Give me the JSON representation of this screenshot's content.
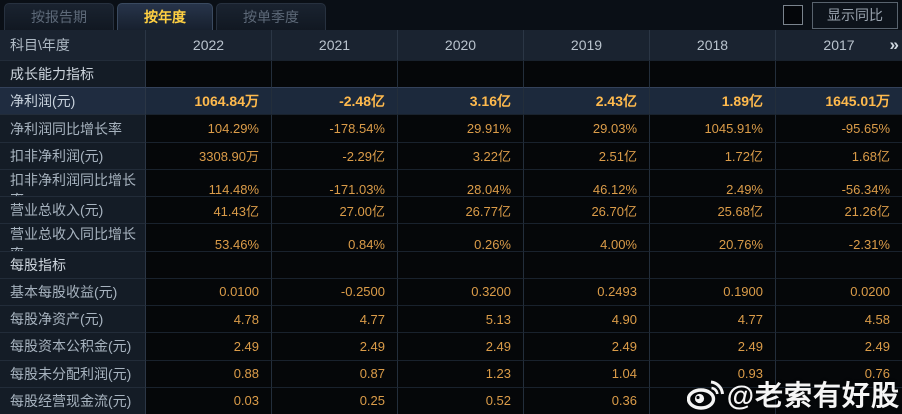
{
  "tabbar": {
    "tabs": [
      {
        "id": "by-report-period",
        "label": "按报告期",
        "active": false
      },
      {
        "id": "by-year",
        "label": "按年度",
        "active": true
      },
      {
        "id": "by-quarter",
        "label": "按单季度",
        "active": false
      }
    ],
    "show_yoy": {
      "label": "显示同比",
      "checked": false
    }
  },
  "table": {
    "corner_label": "科目\\年度",
    "years": [
      "2022",
      "2021",
      "2020",
      "2019",
      "2018",
      "2017"
    ],
    "more_columns_icon": "»",
    "rows": [
      {
        "type": "section",
        "label": "成长能力指标",
        "values": [
          "",
          "",
          "",
          "",
          "",
          ""
        ]
      },
      {
        "type": "highlight",
        "label": "净利润(元)",
        "values": [
          "1064.84万",
          "-2.48亿",
          "3.16亿",
          "2.43亿",
          "1.89亿",
          "1645.01万"
        ]
      },
      {
        "type": "data",
        "label": "净利润同比增长率",
        "values": [
          "104.29%",
          "-178.54%",
          "29.91%",
          "29.03%",
          "1045.91%",
          "-95.65%"
        ]
      },
      {
        "type": "data",
        "label": "扣非净利润(元)",
        "values": [
          "3308.90万",
          "-2.29亿",
          "3.22亿",
          "2.51亿",
          "1.72亿",
          "1.68亿"
        ]
      },
      {
        "type": "data",
        "label": "扣非净利润同比增长率",
        "values": [
          "114.48%",
          "-171.03%",
          "28.04%",
          "46.12%",
          "2.49%",
          "-56.34%"
        ]
      },
      {
        "type": "data",
        "label": "营业总收入(元)",
        "values": [
          "41.43亿",
          "27.00亿",
          "26.77亿",
          "26.70亿",
          "25.68亿",
          "21.26亿"
        ]
      },
      {
        "type": "data",
        "label": "营业总收入同比增长率",
        "values": [
          "53.46%",
          "0.84%",
          "0.26%",
          "4.00%",
          "20.76%",
          "-2.31%"
        ]
      },
      {
        "type": "section",
        "label": "每股指标",
        "values": [
          "",
          "",
          "",
          "",
          "",
          ""
        ]
      },
      {
        "type": "data",
        "label": "基本每股收益(元)",
        "values": [
          "0.0100",
          "-0.2500",
          "0.3200",
          "0.2493",
          "0.1900",
          "0.0200"
        ]
      },
      {
        "type": "data",
        "label": "每股净资产(元)",
        "values": [
          "4.78",
          "4.77",
          "5.13",
          "4.90",
          "4.77",
          "4.58"
        ]
      },
      {
        "type": "data",
        "label": "每股资本公积金(元)",
        "values": [
          "2.49",
          "2.49",
          "2.49",
          "2.49",
          "2.49",
          "2.49"
        ]
      },
      {
        "type": "data",
        "label": "每股未分配利润(元)",
        "values": [
          "0.88",
          "0.87",
          "1.23",
          "1.04",
          "0.93",
          "0.76"
        ]
      },
      {
        "type": "data",
        "label": "每股经营现金流(元)",
        "values": [
          "0.03",
          "0.25",
          "0.52",
          "0.36",
          "",
          ""
        ]
      }
    ]
  },
  "watermark": {
    "handle": "@老索有好股"
  },
  "colors": {
    "accent_gold": "#ffd042",
    "value_orange": "#db9c49",
    "highlight_value": "#ffba4d",
    "highlight_bg": "#1c293c",
    "header_bg": "#1a2330",
    "label_bg": "#141c26"
  }
}
